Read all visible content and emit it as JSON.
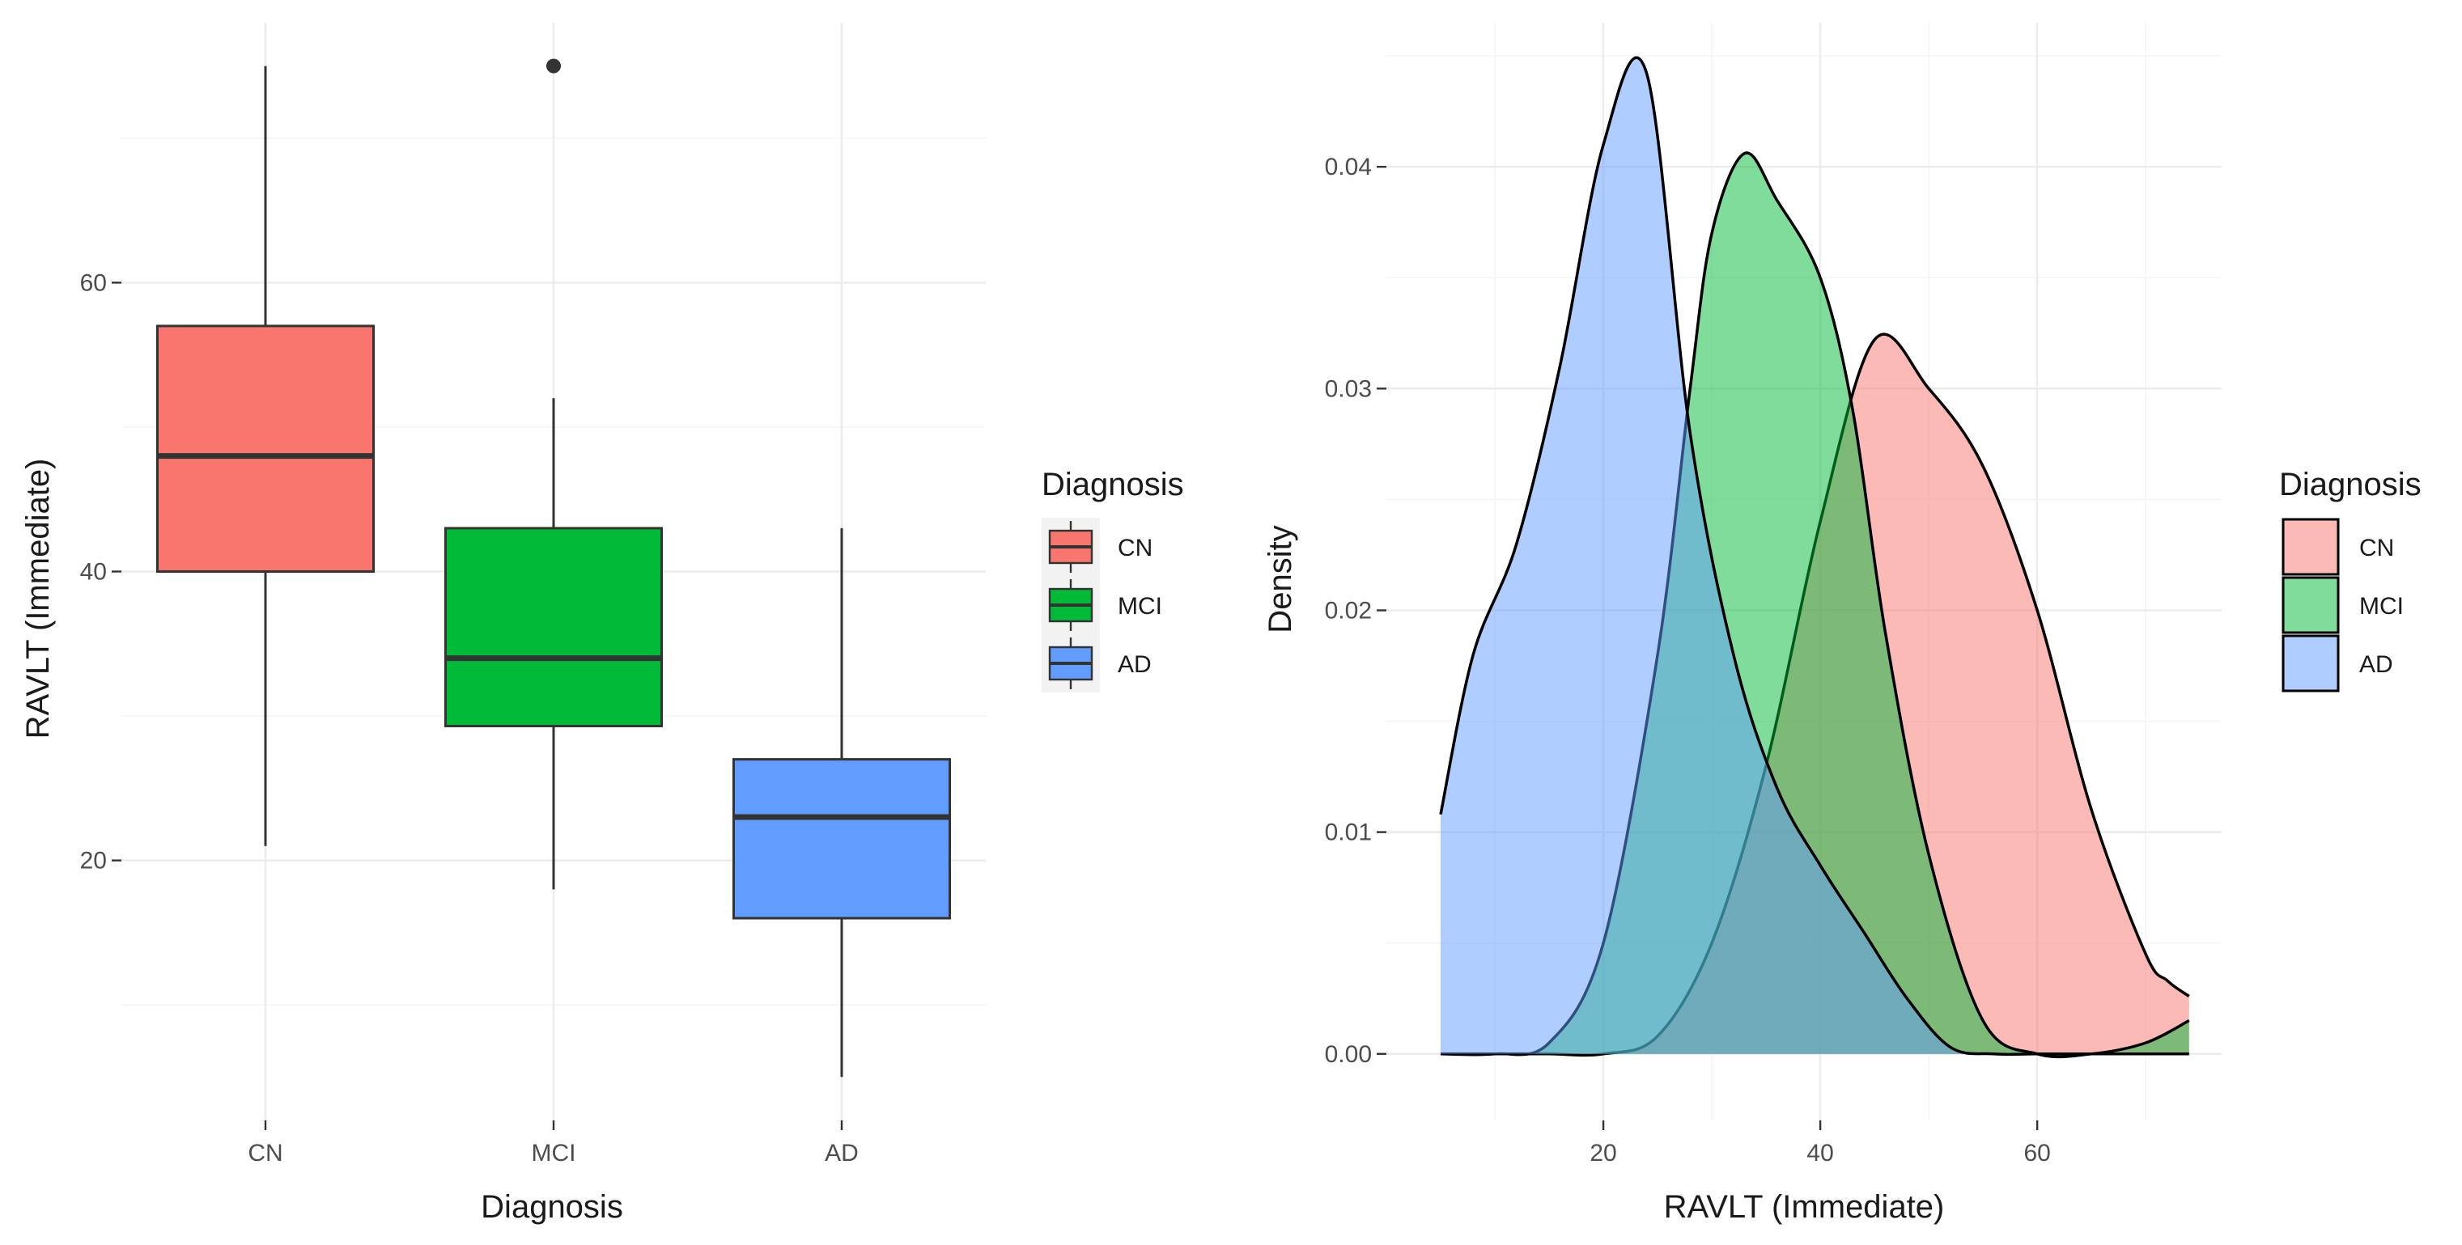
{
  "chart_data": [
    {
      "type": "boxplot",
      "title": "",
      "xlabel": "Diagnosis",
      "ylabel": "RAVLT (Immediate)",
      "categories": [
        "CN",
        "MCI",
        "AD"
      ],
      "ylim": [
        2,
        78
      ],
      "yticks": [
        20,
        40,
        60
      ],
      "boxes": [
        {
          "category": "CN",
          "whisker_low": 21,
          "q1": 40,
          "median": 48,
          "q3": 57,
          "whisker_high": 75,
          "outliers": []
        },
        {
          "category": "MCI",
          "whisker_low": 18,
          "q1": 29.3,
          "median": 34,
          "q3": 43,
          "whisker_high": 52,
          "outliers": [
            75
          ]
        },
        {
          "category": "AD",
          "whisker_low": 5,
          "q1": 16,
          "median": 23,
          "q3": 27,
          "whisker_high": 43,
          "outliers": []
        }
      ],
      "legend": {
        "title": "Diagnosis",
        "position": "right",
        "entries": [
          "CN",
          "MCI",
          "AD"
        ]
      }
    },
    {
      "type": "density",
      "title": "",
      "xlabel": "RAVLT (Immediate)",
      "ylabel": "Density",
      "xlim": [
        0,
        77
      ],
      "ylim": [
        -0.003,
        0.0465
      ],
      "xticks": [
        20,
        40,
        60
      ],
      "yticks": [
        0.0,
        0.01,
        0.02,
        0.03,
        0.04
      ],
      "ytick_labels": [
        "0.00",
        "0.01",
        "0.02",
        "0.03",
        "0.04"
      ],
      "series": [
        {
          "name": "CN",
          "x": [
            5,
            10,
            15,
            20,
            25,
            30,
            35,
            40,
            45,
            50,
            55,
            60,
            65,
            70,
            72,
            74
          ],
          "y": [
            0.0,
            0.0,
            0.0,
            0.0,
            0.0008,
            0.005,
            0.013,
            0.024,
            0.0322,
            0.03,
            0.0265,
            0.02,
            0.011,
            0.0045,
            0.0033,
            0.0026
          ]
        },
        {
          "name": "MCI",
          "x": [
            5,
            10,
            15,
            20,
            25,
            28,
            30,
            33,
            36,
            40,
            43,
            46,
            50,
            55,
            60,
            65,
            70,
            74
          ],
          "y": [
            0.0,
            0.0,
            0.0005,
            0.005,
            0.018,
            0.03,
            0.037,
            0.0406,
            0.0385,
            0.035,
            0.029,
            0.019,
            0.009,
            0.0015,
            0.0,
            0.0,
            0.0005,
            0.0015
          ]
        },
        {
          "name": "AD",
          "x": [
            5,
            8,
            12,
            16,
            20,
            24,
            28,
            32,
            36,
            40,
            44,
            48,
            52,
            56,
            60,
            65,
            70,
            74
          ],
          "y": [
            0.0108,
            0.018,
            0.023,
            0.031,
            0.041,
            0.0442,
            0.028,
            0.018,
            0.012,
            0.0085,
            0.0055,
            0.0025,
            0.0003,
            0.0,
            0.0,
            0.0,
            0.0,
            0.0
          ]
        }
      ],
      "legend": {
        "title": "Diagnosis",
        "position": "right",
        "entries": [
          "CN",
          "MCI",
          "AD"
        ]
      }
    }
  ],
  "colors": {
    "CN": "#f8766d",
    "MCI": "#00ba38",
    "AD": "#619cff",
    "panel_background": "#ffffff",
    "grid": "#ebebeb",
    "line": "#000000",
    "box_border": "#333333"
  }
}
